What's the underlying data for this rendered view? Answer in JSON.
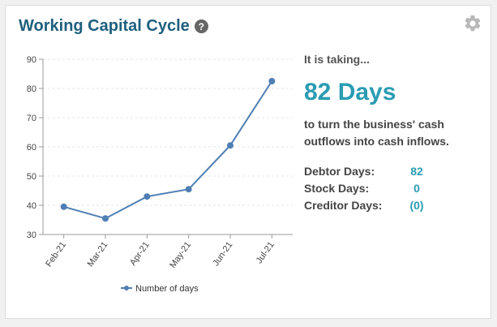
{
  "widget": {
    "title": "Working Capital Cycle",
    "help_icon": "question-circle-icon",
    "settings_icon": "gear-icon"
  },
  "summary": {
    "intro": "It is taking...",
    "days_value": "82 Days",
    "description": "to turn the business' cash outflows into cash inflows.",
    "stats": [
      {
        "label": "Debtor Days:",
        "value": "82"
      },
      {
        "label": "Stock Days:",
        "value": "0"
      },
      {
        "label": "Creditor Days:",
        "value": "(0)"
      }
    ]
  },
  "colors": {
    "title": "#1e5f7e",
    "accent": "#2a9cb3",
    "series_line": "#4f7fb4"
  },
  "chart_data": {
    "type": "line",
    "categories": [
      "Feb-21",
      "Mar-21",
      "Apr-21",
      "May-21",
      "Jun-21",
      "Jul-21"
    ],
    "series": [
      {
        "name": "Number of days",
        "values": [
          39.5,
          35.5,
          43,
          45.5,
          60.5,
          82.5
        ]
      }
    ],
    "ylim": [
      30,
      90
    ],
    "yticks": [
      30,
      40,
      50,
      60,
      70,
      80,
      90
    ],
    "grid": true,
    "legend": "bottom"
  }
}
